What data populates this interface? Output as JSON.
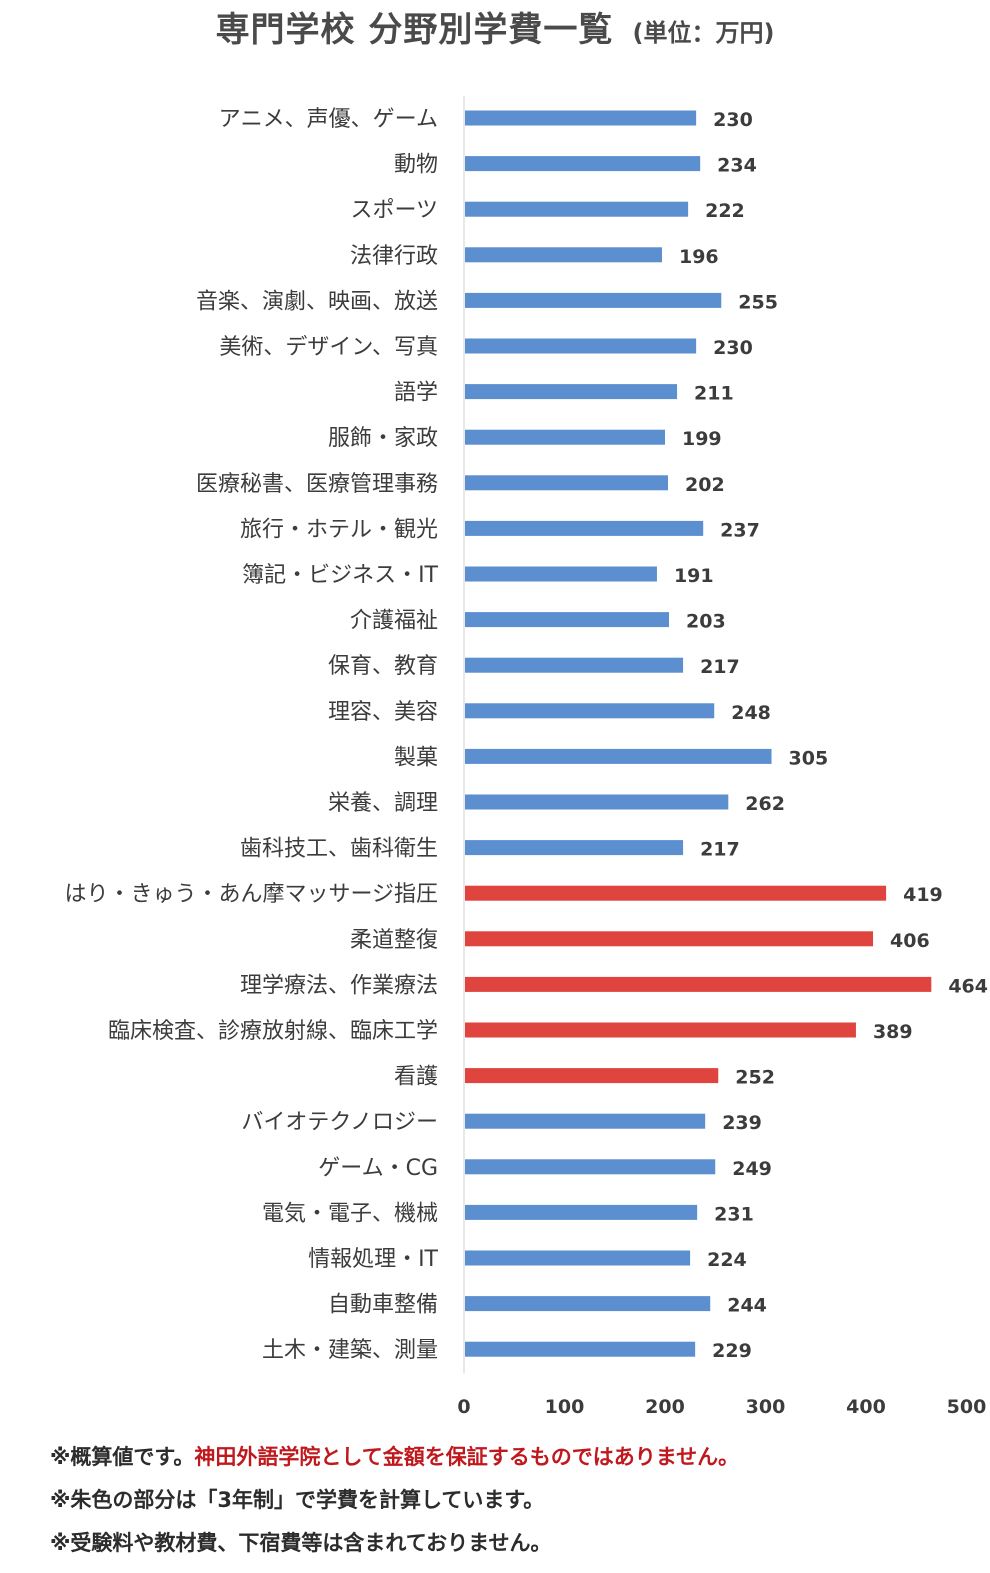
{
  "title": {
    "main": "専門学校 分野別学費一覧",
    "unit": "(単位：万円)"
  },
  "colors": {
    "default_bar": "#5b8fd0",
    "highlight_bar": "#e0443e",
    "note_red": "#c0191d"
  },
  "chart_data": {
    "type": "bar",
    "orientation": "horizontal",
    "categories": [
      "アニメ、声優、ゲーム",
      "動物",
      "スポーツ",
      "法律行政",
      "音楽、演劇、映画、放送",
      "美術、デザイン、写真",
      "語学",
      "服飾・家政",
      "医療秘書、医療管理事務",
      "旅行・ホテル・観光",
      "簿記・ビジネス・IT",
      "介護福祉",
      "保育、教育",
      "理容、美容",
      "製菓",
      "栄養、調理",
      "歯科技工、歯科衛生",
      "はり・きゅう・あん摩マッサージ指圧",
      "柔道整復",
      "理学療法、作業療法",
      "臨床検査、診療放射線、臨床工学",
      "看護",
      "バイオテクノロジー",
      "ゲーム・CG",
      "電気・電子、機械",
      "情報処理・IT",
      "自動車整備",
      "土木・建築、測量"
    ],
    "values": [
      230,
      234,
      222,
      196,
      255,
      230,
      211,
      199,
      202,
      237,
      191,
      203,
      217,
      248,
      305,
      262,
      217,
      419,
      406,
      464,
      389,
      252,
      239,
      249,
      231,
      224,
      244,
      229
    ],
    "highlighted": [
      false,
      false,
      false,
      false,
      false,
      false,
      false,
      false,
      false,
      false,
      false,
      false,
      false,
      false,
      false,
      false,
      false,
      true,
      true,
      true,
      true,
      true,
      false,
      false,
      false,
      false,
      false,
      false
    ],
    "xlim": [
      0,
      500
    ],
    "xticks": [
      0,
      100,
      200,
      300,
      400,
      500
    ],
    "grid": false,
    "legend": "none",
    "data_labels": true
  },
  "notes": [
    {
      "prefix": "※概算値です。",
      "highlight": "神田外語学院として金額を保証するものではありません。"
    },
    {
      "prefix": "※朱色の部分は「3年制」で学費を計算しています。",
      "highlight": ""
    },
    {
      "prefix": "※受験料や教材費、下宿費等は含まれておりません。",
      "highlight": ""
    }
  ]
}
